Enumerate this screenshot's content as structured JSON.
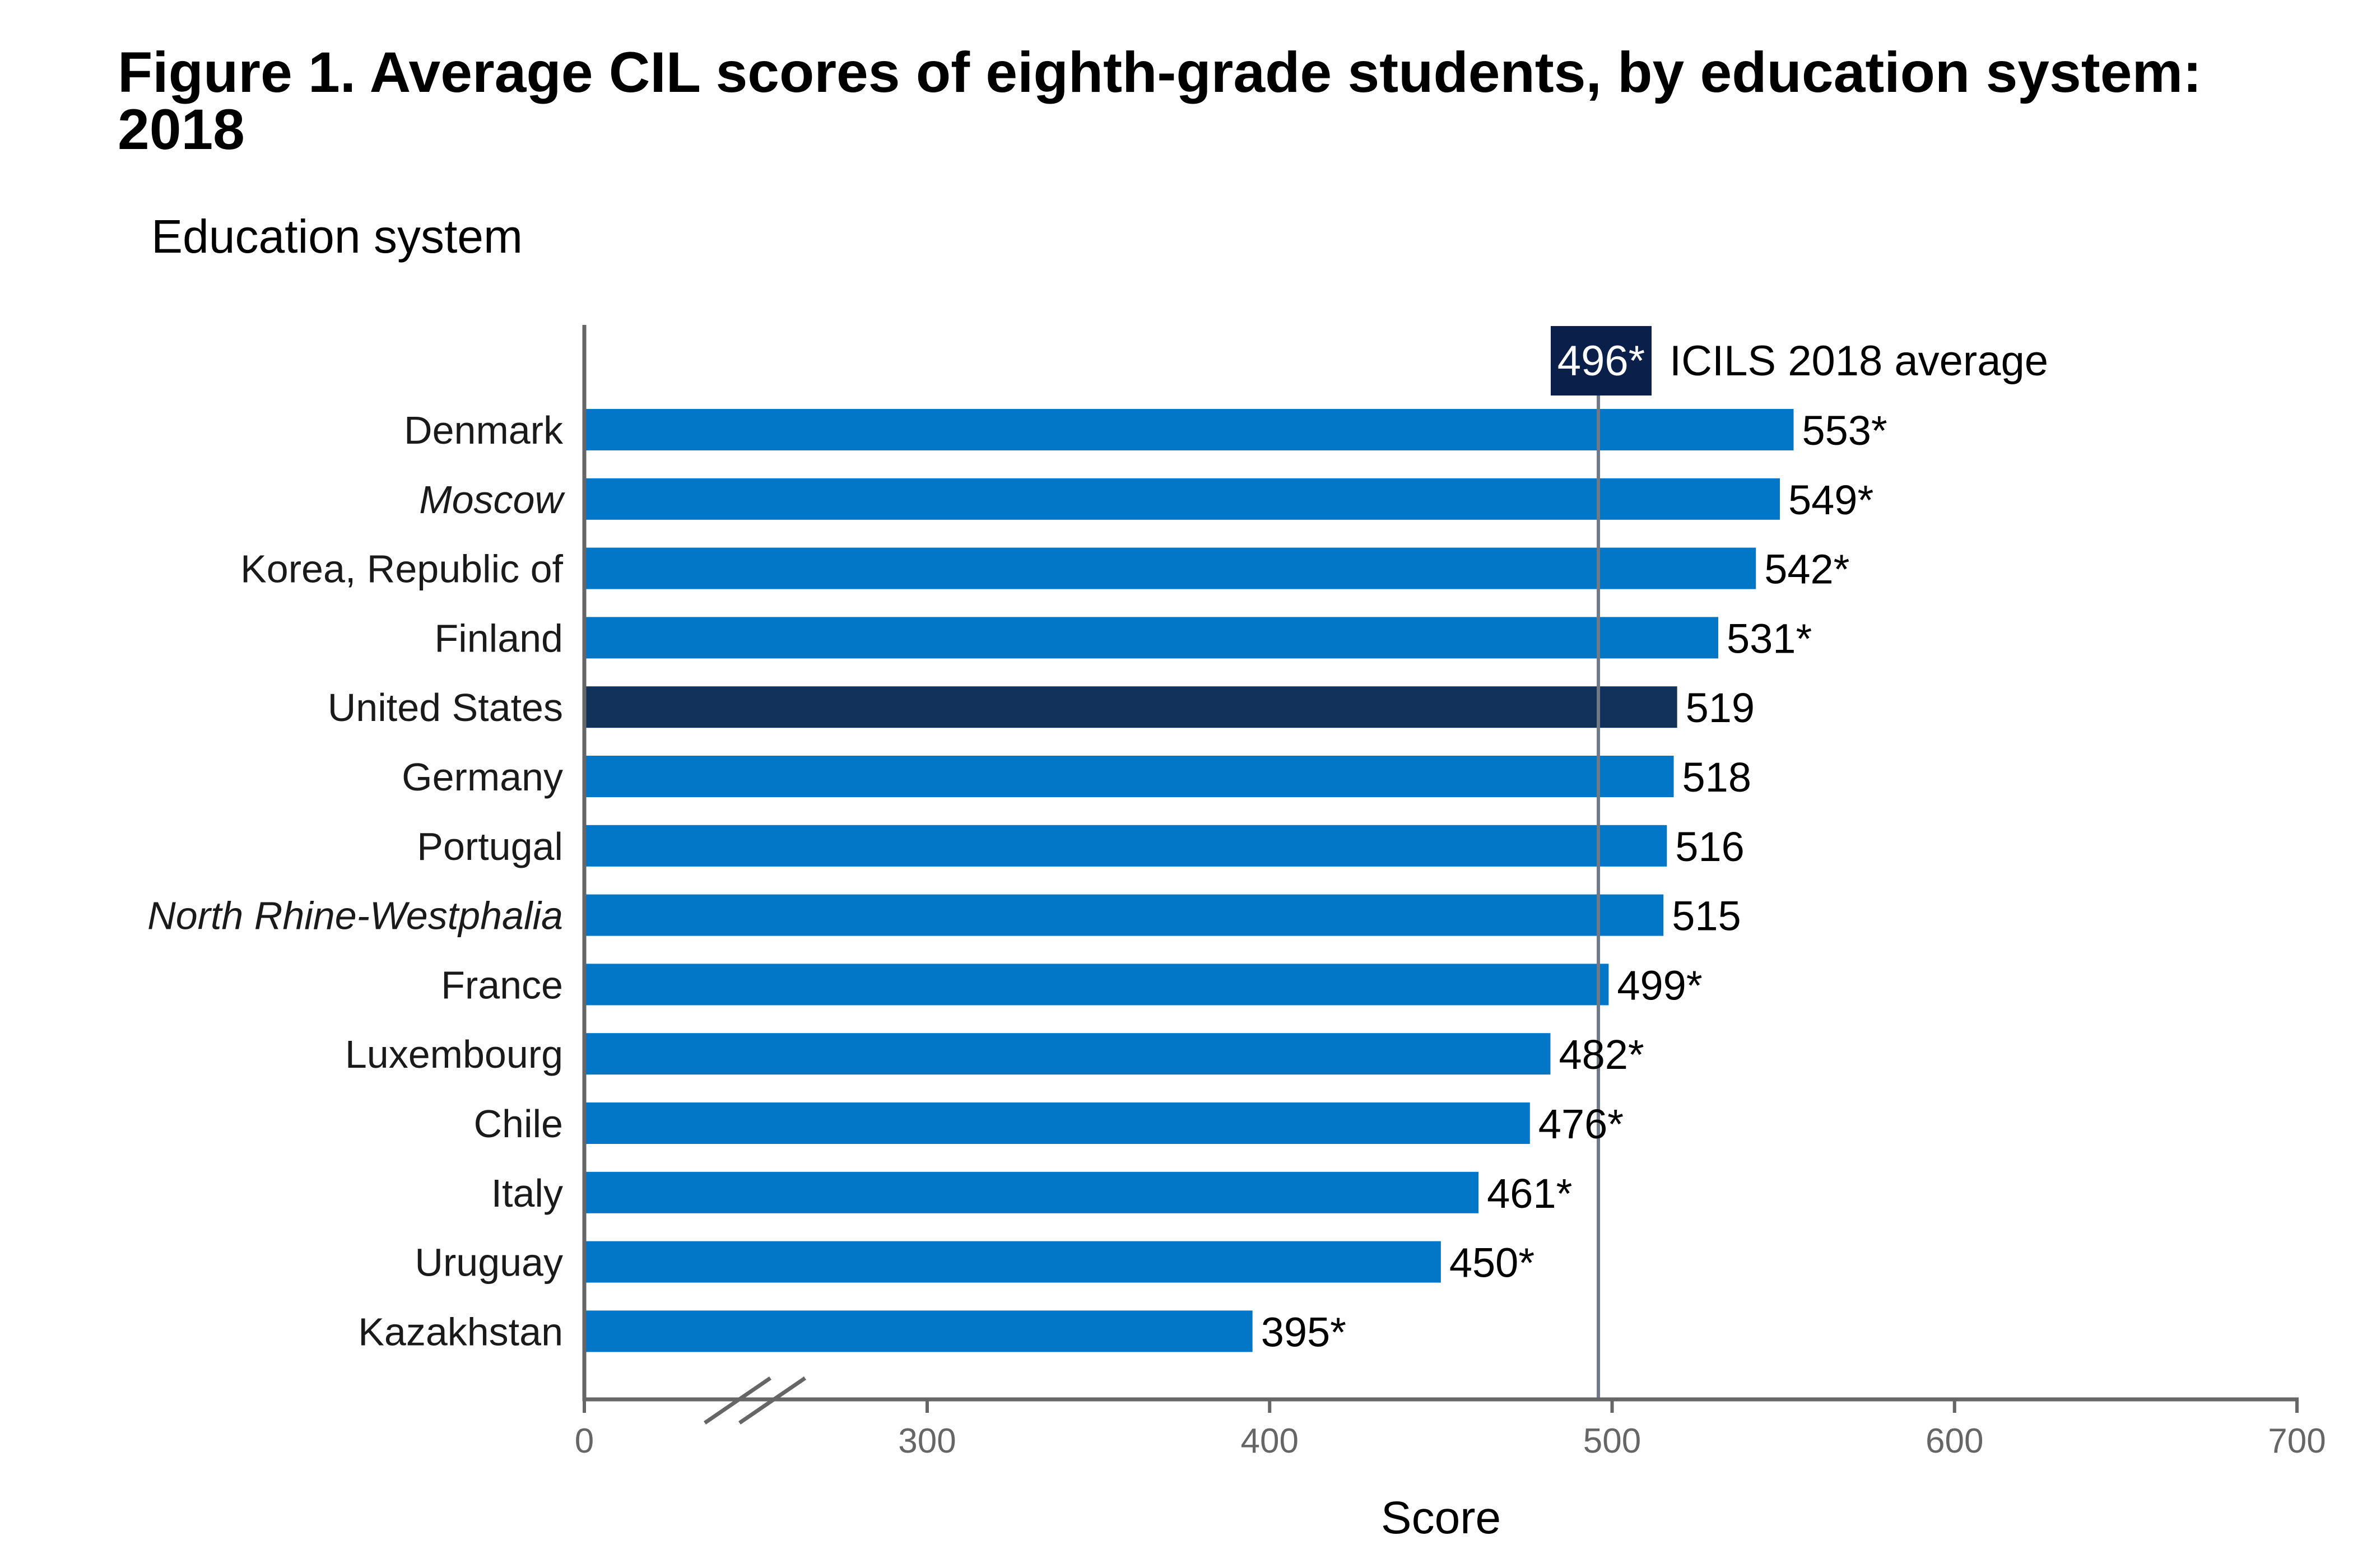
{
  "chart_data": {
    "type": "bar",
    "orientation": "horizontal",
    "title": "Figure 1. Average CIL scores of eighth-grade students, by education system: 2018",
    "ylabel": "Education system",
    "xlabel": "Score",
    "xlim": [
      0,
      700
    ],
    "axis_break": "between 0 and 300",
    "x_ticks": [
      "0",
      "300",
      "400",
      "500",
      "600",
      "700"
    ],
    "categories": [
      "Denmark",
      "Moscow",
      "Korea, Republic of",
      "Finland",
      "United States",
      "Germany",
      "Portugal",
      "North Rhine-Westphalia",
      "France",
      "Luxembourg",
      "Chile",
      "Italy",
      "Uruguay",
      "Kazakhstan"
    ],
    "italic_categories": [
      "Moscow",
      "North Rhine-Westphalia"
    ],
    "highlight_category": "United States",
    "values": [
      553,
      549,
      542,
      531,
      519,
      518,
      516,
      515,
      499,
      482,
      476,
      461,
      450,
      395
    ],
    "value_labels": [
      "553*",
      "549*",
      "542*",
      "531*",
      "519",
      "518",
      "516",
      "515",
      "499*",
      "482*",
      "476*",
      "461*",
      "450*",
      "395*"
    ],
    "reference_line": {
      "value": 496,
      "badge": "496*",
      "label": "ICILS 2018 average"
    },
    "colors": {
      "bar": "#0277c8",
      "highlight": "#12325b",
      "reference_badge": "#0b1f4b",
      "reference_line": "#707a86",
      "axis": "#666666"
    },
    "grid": false
  }
}
